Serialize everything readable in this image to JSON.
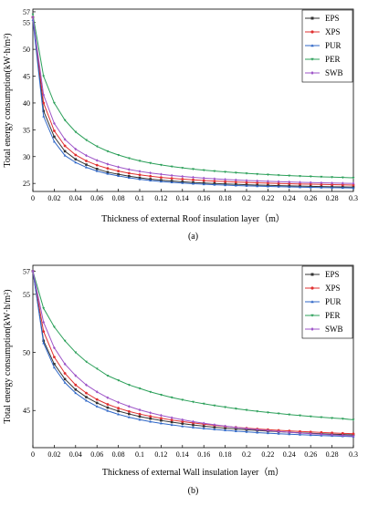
{
  "chart_data": [
    {
      "type": "line",
      "panel_label": "(a)",
      "xlabel": "Thickness of external Roof insulation layer（m）",
      "ylabel": "Total energy consumption(kW·h/m²)",
      "xlim": [
        0,
        0.3
      ],
      "ylim": [
        23.5,
        57.5
      ],
      "xticks": [
        "0",
        "0.02",
        "0.04",
        "0.06",
        "0.08",
        "0.1",
        "0.12",
        "0.14",
        "0.16",
        "0.18",
        "0.2",
        "0.22",
        "0.24",
        "0.26",
        "0.28",
        "0.3"
      ],
      "yticks": [
        "25",
        "30",
        "35",
        "40",
        "45",
        "50",
        "55",
        "57"
      ],
      "grid": false,
      "legend_position": "top-right",
      "x": [
        0,
        0.01,
        0.02,
        0.03,
        0.04,
        0.05,
        0.06,
        0.07,
        0.08,
        0.09,
        0.1,
        0.11,
        0.12,
        0.13,
        0.14,
        0.15,
        0.16,
        0.17,
        0.18,
        0.19,
        0.2,
        0.21,
        0.22,
        0.23,
        0.24,
        0.25,
        0.26,
        0.27,
        0.28,
        0.29,
        0.3
      ],
      "series": [
        {
          "name": "EPS",
          "color": "#333333",
          "marker": "square",
          "values": [
            56.0,
            38.5,
            33.7,
            31.0,
            29.5,
            28.5,
            27.7,
            27.1,
            26.7,
            26.35,
            26.05,
            25.8,
            25.6,
            25.45,
            25.3,
            25.18,
            25.07,
            24.98,
            24.9,
            24.83,
            24.76,
            24.7,
            24.64,
            24.59,
            24.54,
            24.5,
            24.46,
            24.42,
            24.38,
            24.35,
            24.32
          ]
        },
        {
          "name": "XPS",
          "color": "#e03030",
          "marker": "circle",
          "values": [
            56.0,
            40.0,
            34.8,
            32.0,
            30.3,
            29.2,
            28.4,
            27.8,
            27.3,
            26.9,
            26.6,
            26.35,
            26.12,
            25.95,
            25.8,
            25.66,
            25.54,
            25.43,
            25.34,
            25.26,
            25.18,
            25.11,
            25.05,
            24.99,
            24.94,
            24.89,
            24.85,
            24.81,
            24.77,
            24.73,
            24.7
          ]
        },
        {
          "name": "PUR",
          "color": "#2f67c7",
          "marker": "triangle",
          "values": [
            55.5,
            37.5,
            32.8,
            30.2,
            28.9,
            28.0,
            27.3,
            26.8,
            26.4,
            26.05,
            25.77,
            25.55,
            25.35,
            25.2,
            25.07,
            24.95,
            24.85,
            24.76,
            24.68,
            24.61,
            24.55,
            24.49,
            24.44,
            24.39,
            24.34,
            24.3,
            24.26,
            24.23,
            24.2,
            24.17,
            24.14
          ]
        },
        {
          "name": "PER",
          "color": "#2ca05a",
          "marker": "triangle-down",
          "values": [
            56.5,
            45.0,
            40.0,
            36.8,
            34.6,
            33.1,
            31.9,
            31.0,
            30.3,
            29.7,
            29.2,
            28.8,
            28.45,
            28.15,
            27.9,
            27.67,
            27.47,
            27.3,
            27.15,
            27.0,
            26.87,
            26.75,
            26.64,
            26.54,
            26.45,
            26.37,
            26.3,
            26.23,
            26.17,
            26.11,
            26.05
          ]
        },
        {
          "name": "SWB",
          "color": "#9e55c8",
          "marker": "diamond",
          "values": [
            56.0,
            41.5,
            36.2,
            33.2,
            31.4,
            30.2,
            29.3,
            28.6,
            28.05,
            27.6,
            27.25,
            26.95,
            26.7,
            26.48,
            26.3,
            26.13,
            25.98,
            25.85,
            25.74,
            25.64,
            25.55,
            25.47,
            25.4,
            25.33,
            25.27,
            25.21,
            25.16,
            25.11,
            25.07,
            25.03,
            25.0
          ]
        }
      ]
    },
    {
      "type": "line",
      "panel_label": "(b)",
      "xlabel": "Thickness of external Wall insulation layer（m）",
      "ylabel": "Total energy consumption(kW·h/m²)",
      "xlim": [
        0,
        0.3
      ],
      "ylim": [
        41.8,
        57.5
      ],
      "xticks": [
        "0",
        "0.02",
        "0.04",
        "0.06",
        "0.08",
        "0.1",
        "0.12",
        "0.14",
        "0.16",
        "0.18",
        "0.2",
        "0.22",
        "0.24",
        "0.26",
        "0.28",
        "0.3"
      ],
      "yticks": [
        "45",
        "50",
        "55",
        "57"
      ],
      "grid": false,
      "legend_position": "top-right",
      "x": [
        0,
        0.01,
        0.02,
        0.03,
        0.04,
        0.05,
        0.06,
        0.07,
        0.08,
        0.09,
        0.1,
        0.11,
        0.12,
        0.13,
        0.14,
        0.15,
        0.16,
        0.17,
        0.18,
        0.19,
        0.2,
        0.21,
        0.22,
        0.23,
        0.24,
        0.25,
        0.26,
        0.27,
        0.28,
        0.29,
        0.3
      ],
      "series": [
        {
          "name": "EPS",
          "color": "#333333",
          "marker": "square",
          "values": [
            57.0,
            51.0,
            49.0,
            47.7,
            46.8,
            46.15,
            45.65,
            45.25,
            44.95,
            44.7,
            44.48,
            44.3,
            44.14,
            44.0,
            43.87,
            43.75,
            43.65,
            43.56,
            43.48,
            43.41,
            43.34,
            43.28,
            43.22,
            43.17,
            43.12,
            43.08,
            43.04,
            43.0,
            42.96,
            42.93,
            42.9
          ]
        },
        {
          "name": "XPS",
          "color": "#e03030",
          "marker": "circle",
          "values": [
            57.0,
            51.8,
            49.6,
            48.2,
            47.2,
            46.5,
            45.95,
            45.53,
            45.2,
            44.92,
            44.69,
            44.5,
            44.33,
            44.18,
            44.05,
            43.93,
            43.82,
            43.72,
            43.63,
            43.55,
            43.48,
            43.41,
            43.35,
            43.29,
            43.24,
            43.19,
            43.15,
            43.11,
            43.07,
            43.03,
            43.0
          ]
        },
        {
          "name": "PUR",
          "color": "#2f67c7",
          "marker": "triangle",
          "values": [
            57.0,
            50.8,
            48.7,
            47.4,
            46.5,
            45.85,
            45.35,
            44.97,
            44.67,
            44.42,
            44.21,
            44.04,
            43.89,
            43.76,
            43.64,
            43.54,
            43.45,
            43.37,
            43.29,
            43.22,
            43.16,
            43.1,
            43.05,
            43.0,
            42.96,
            42.92,
            42.88,
            42.84,
            42.81,
            42.78,
            42.75
          ]
        },
        {
          "name": "PER",
          "color": "#2ca05a",
          "marker": "triangle-down",
          "values": [
            57.0,
            53.8,
            52.2,
            51.0,
            50.0,
            49.2,
            48.6,
            48.0,
            47.6,
            47.2,
            46.9,
            46.6,
            46.35,
            46.12,
            45.92,
            45.74,
            45.58,
            45.43,
            45.29,
            45.16,
            45.04,
            44.93,
            44.83,
            44.74,
            44.65,
            44.57,
            44.49,
            44.42,
            44.35,
            44.29,
            44.2
          ]
        },
        {
          "name": "SWB",
          "color": "#9e55c8",
          "marker": "diamond",
          "values": [
            57.0,
            52.6,
            50.4,
            49.0,
            48.0,
            47.2,
            46.6,
            46.1,
            45.7,
            45.35,
            45.05,
            44.8,
            44.58,
            44.38,
            44.2,
            44.04,
            43.9,
            43.77,
            43.65,
            43.54,
            43.44,
            43.35,
            43.27,
            43.19,
            43.12,
            43.06,
            43.0,
            42.95,
            42.9,
            42.85,
            42.8
          ]
        }
      ]
    }
  ]
}
